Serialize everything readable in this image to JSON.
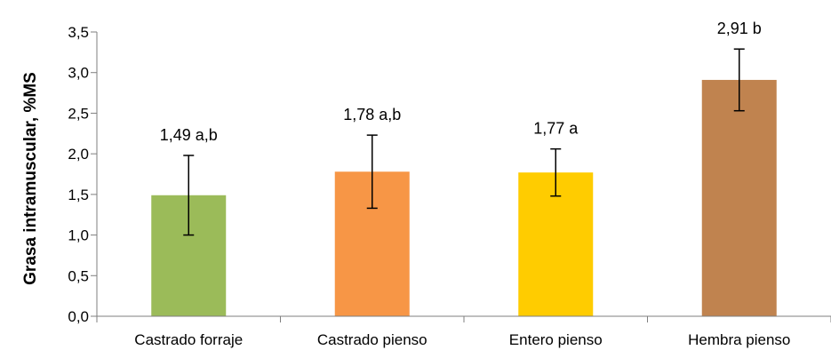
{
  "chart_data": {
    "type": "bar",
    "title": "",
    "xlabel": "",
    "ylabel": "Grasa intramuscular, %MS",
    "ylim": [
      0,
      3.5
    ],
    "yticks": [
      "0,0",
      "0,5",
      "1,0",
      "1,5",
      "2,0",
      "2,5",
      "3,0",
      "3,5"
    ],
    "ytick_values": [
      0,
      0.5,
      1.0,
      1.5,
      2.0,
      2.5,
      3.0,
      3.5
    ],
    "grid": false,
    "legend": "none",
    "categories": [
      "Castrado forraje",
      "Castrado pienso",
      "Entero pienso",
      "Hembra pienso"
    ],
    "values": [
      1.49,
      1.78,
      1.77,
      2.91
    ],
    "error": [
      0.49,
      0.45,
      0.29,
      0.38
    ],
    "data_labels": [
      "1,49 a,b",
      "1,78 a,b",
      "1,77 a",
      "2,91 b"
    ],
    "colors": [
      "#9BBB59",
      "#F79646",
      "#FFCC00",
      "#C0834F"
    ]
  }
}
